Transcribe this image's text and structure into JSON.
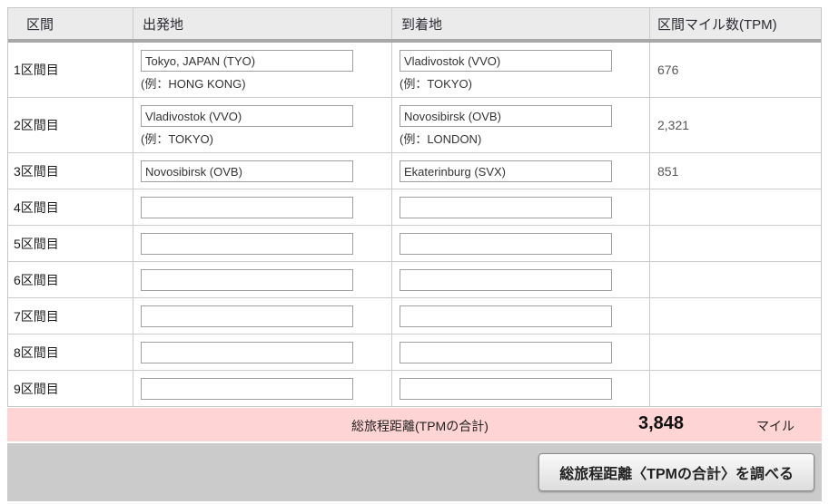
{
  "colors": {
    "header_bg": "#ebebeb",
    "header_rule": "#a8a8a8",
    "total_row_bg": "#ffd4d4",
    "footer_bg": "#cbcbcb"
  },
  "table": {
    "headers": {
      "segment": "区間",
      "departure": "出発地",
      "arrival": "到着地",
      "miles": "区間マイル数(TPM)"
    },
    "rows": [
      {
        "label": "1区間目",
        "departure": "Tokyo, JAPAN (TYO)",
        "departure_hint": "(例：HONG KONG)",
        "arrival": "Vladivostok (VVO)",
        "arrival_hint": "(例：TOKYO)",
        "miles": "676"
      },
      {
        "label": "2区間目",
        "departure": "Vladivostok (VVO)",
        "departure_hint": "(例：TOKYO)",
        "arrival": "Novosibirsk (OVB)",
        "arrival_hint": "(例：LONDON)",
        "miles": "2,321"
      },
      {
        "label": "3区間目",
        "departure": "Novosibirsk (OVB)",
        "departure_hint": "",
        "arrival": "Ekaterinburg (SVX)",
        "arrival_hint": "",
        "miles": "851"
      },
      {
        "label": "4区間目",
        "departure": "",
        "departure_hint": "",
        "arrival": "",
        "arrival_hint": "",
        "miles": ""
      },
      {
        "label": "5区間目",
        "departure": "",
        "departure_hint": "",
        "arrival": "",
        "arrival_hint": "",
        "miles": ""
      },
      {
        "label": "6区間目",
        "departure": "",
        "departure_hint": "",
        "arrival": "",
        "arrival_hint": "",
        "miles": ""
      },
      {
        "label": "7区間目",
        "departure": "",
        "departure_hint": "",
        "arrival": "",
        "arrival_hint": "",
        "miles": ""
      },
      {
        "label": "8区間目",
        "departure": "",
        "departure_hint": "",
        "arrival": "",
        "arrival_hint": "",
        "miles": ""
      },
      {
        "label": "9区間目",
        "departure": "",
        "departure_hint": "",
        "arrival": "",
        "arrival_hint": "",
        "miles": ""
      }
    ]
  },
  "total": {
    "label": "総旅程距離(TPMの合計)",
    "value": "3,848",
    "unit": "マイル"
  },
  "actions": {
    "calculate_button": "総旅程距離〈TPMの合計〉を調べる"
  }
}
